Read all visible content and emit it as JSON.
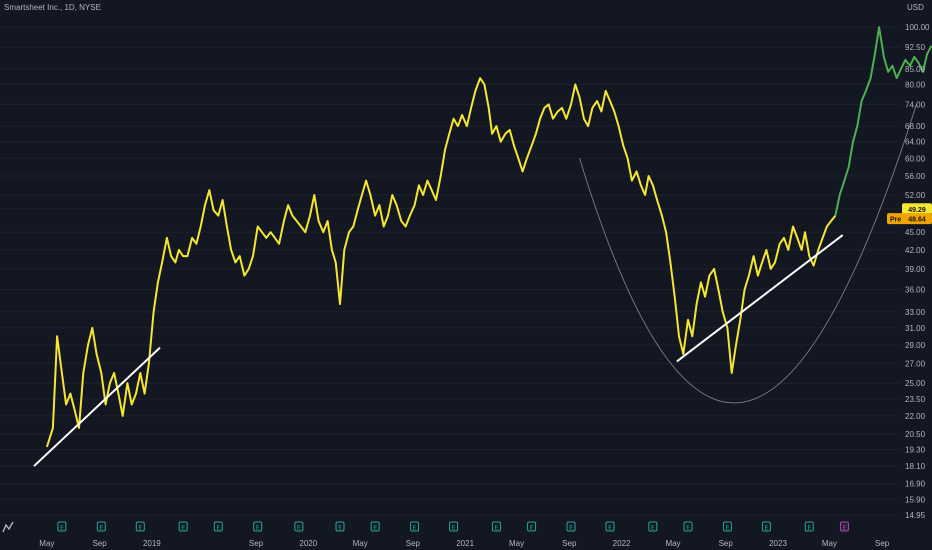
{
  "header": {
    "title": "Smartsheet Inc., 1D, NYSE"
  },
  "colors": {
    "background": "#131722",
    "price_line": "#f5e632",
    "recent_line": "#4caf50",
    "trendline": "#ffffff",
    "arc": "#9598a1",
    "last_price_badge": "#f5e632",
    "pre_badge": "#f0a500",
    "event_badge": "#26a69a",
    "event_badge_alt": "#ab47bc"
  },
  "chart_data": {
    "type": "line",
    "title": "Smartsheet Inc., 1D, NYSE",
    "ylabel": "USD",
    "y_scale": "log",
    "ylim": [
      14.5,
      102
    ],
    "y_ticks": [
      "100.00",
      "92.50",
      "85.00",
      "80.00",
      "74.00",
      "68.00",
      "64.00",
      "60.00",
      "56.00",
      "52.00",
      "49.29",
      "45.00",
      "42.00",
      "39.00",
      "36.00",
      "33.00",
      "31.00",
      "29.00",
      "27.00",
      "25.00",
      "23.50",
      "22.00",
      "20.50",
      "19.30",
      "18.10",
      "16.90",
      "15.90",
      "14.95"
    ],
    "x_ticks": [
      "May",
      "Sep",
      "2019",
      "Sep",
      "2020",
      "May",
      "Sep",
      "2021",
      "May",
      "Sep",
      "2022",
      "May",
      "Sep",
      "2023",
      "May",
      "Sep"
    ],
    "last_price": "49.29",
    "pre_label": "Pre",
    "pre_price": "48.64",
    "series": [
      {
        "values": [
          [
            "2018-05-01",
            19.5
          ],
          [
            "2018-05-15",
            21
          ],
          [
            "2018-05-25",
            30
          ],
          [
            "2018-06-05",
            26
          ],
          [
            "2018-06-15",
            23
          ],
          [
            "2018-06-25",
            24
          ],
          [
            "2018-07-05",
            22.5
          ],
          [
            "2018-07-15",
            21
          ],
          [
            "2018-07-25",
            26
          ],
          [
            "2018-08-05",
            29
          ],
          [
            "2018-08-15",
            31
          ],
          [
            "2018-08-25",
            28
          ],
          [
            "2018-09-05",
            26
          ],
          [
            "2018-09-15",
            23
          ],
          [
            "2018-09-25",
            25
          ],
          [
            "2018-10-05",
            26
          ],
          [
            "2018-10-15",
            24
          ],
          [
            "2018-10-25",
            22
          ],
          [
            "2018-11-05",
            25
          ],
          [
            "2018-11-15",
            23
          ],
          [
            "2018-11-25",
            24
          ],
          [
            "2018-12-05",
            26
          ],
          [
            "2018-12-15",
            24
          ],
          [
            "2018-12-25",
            27
          ],
          [
            "2019-01-05",
            33
          ],
          [
            "2019-01-15",
            37
          ],
          [
            "2019-01-25",
            40
          ],
          [
            "2019-02-05",
            44
          ],
          [
            "2019-02-15",
            41
          ],
          [
            "2019-02-25",
            40
          ],
          [
            "2019-03-05",
            42
          ],
          [
            "2019-03-15",
            41
          ],
          [
            "2019-03-25",
            41
          ],
          [
            "2019-04-05",
            44
          ],
          [
            "2019-04-15",
            43
          ],
          [
            "2019-04-25",
            46
          ],
          [
            "2019-05-05",
            50
          ],
          [
            "2019-05-15",
            53
          ],
          [
            "2019-05-25",
            49
          ],
          [
            "2019-06-05",
            48
          ],
          [
            "2019-06-15",
            51
          ],
          [
            "2019-06-25",
            46
          ],
          [
            "2019-07-05",
            42
          ],
          [
            "2019-07-15",
            40
          ],
          [
            "2019-07-25",
            41
          ],
          [
            "2019-08-05",
            38
          ],
          [
            "2019-08-15",
            39
          ],
          [
            "2019-08-25",
            41
          ],
          [
            "2019-09-05",
            46
          ],
          [
            "2019-09-15",
            45
          ],
          [
            "2019-09-25",
            44
          ],
          [
            "2019-10-05",
            45
          ],
          [
            "2019-10-15",
            44
          ],
          [
            "2019-10-25",
            43
          ],
          [
            "2019-11-05",
            47
          ],
          [
            "2019-11-15",
            50
          ],
          [
            "2019-11-25",
            48
          ],
          [
            "2019-12-05",
            47
          ],
          [
            "2019-12-15",
            46
          ],
          [
            "2019-12-25",
            45
          ],
          [
            "2020-01-05",
            48
          ],
          [
            "2020-01-15",
            52
          ],
          [
            "2020-01-25",
            47
          ],
          [
            "2020-02-05",
            45
          ],
          [
            "2020-02-15",
            47
          ],
          [
            "2020-02-25",
            42
          ],
          [
            "2020-03-05",
            40
          ],
          [
            "2020-03-15",
            34
          ],
          [
            "2020-03-25",
            42
          ],
          [
            "2020-04-05",
            45
          ],
          [
            "2020-04-15",
            46
          ],
          [
            "2020-04-25",
            49
          ],
          [
            "2020-05-05",
            52
          ],
          [
            "2020-05-15",
            55
          ],
          [
            "2020-05-25",
            52
          ],
          [
            "2020-06-05",
            48
          ],
          [
            "2020-06-15",
            50
          ],
          [
            "2020-06-25",
            46
          ],
          [
            "2020-07-05",
            48
          ],
          [
            "2020-07-15",
            52
          ],
          [
            "2020-07-25",
            50
          ],
          [
            "2020-08-05",
            47
          ],
          [
            "2020-08-15",
            46
          ],
          [
            "2020-08-25",
            48
          ],
          [
            "2020-09-05",
            50
          ],
          [
            "2020-09-15",
            54
          ],
          [
            "2020-09-25",
            52
          ],
          [
            "2020-10-05",
            55
          ],
          [
            "2020-10-15",
            53
          ],
          [
            "2020-10-25",
            51
          ],
          [
            "2020-11-05",
            56
          ],
          [
            "2020-11-15",
            62
          ],
          [
            "2020-11-25",
            66
          ],
          [
            "2020-12-05",
            70
          ],
          [
            "2020-12-15",
            68
          ],
          [
            "2020-12-25",
            71
          ],
          [
            "2021-01-05",
            68
          ],
          [
            "2021-01-15",
            73
          ],
          [
            "2021-01-25",
            78
          ],
          [
            "2021-02-05",
            82
          ],
          [
            "2021-02-15",
            80
          ],
          [
            "2021-02-25",
            73
          ],
          [
            "2021-03-05",
            66
          ],
          [
            "2021-03-15",
            68
          ],
          [
            "2021-03-25",
            64
          ],
          [
            "2021-04-05",
            66
          ],
          [
            "2021-04-15",
            67
          ],
          [
            "2021-04-25",
            63
          ],
          [
            "2021-05-05",
            60
          ],
          [
            "2021-05-15",
            57
          ],
          [
            "2021-05-25",
            60
          ],
          [
            "2021-06-05",
            63
          ],
          [
            "2021-06-15",
            66
          ],
          [
            "2021-06-25",
            70
          ],
          [
            "2021-07-05",
            73
          ],
          [
            "2021-07-15",
            74
          ],
          [
            "2021-07-25",
            70
          ],
          [
            "2021-08-05",
            72
          ],
          [
            "2021-08-15",
            73
          ],
          [
            "2021-08-25",
            70
          ],
          [
            "2021-09-05",
            74
          ],
          [
            "2021-09-15",
            80
          ],
          [
            "2021-09-25",
            76
          ],
          [
            "2021-10-05",
            70
          ],
          [
            "2021-10-15",
            68
          ],
          [
            "2021-10-25",
            73
          ],
          [
            "2021-11-05",
            75
          ],
          [
            "2021-11-15",
            72
          ],
          [
            "2021-11-25",
            78
          ],
          [
            "2021-12-05",
            75
          ],
          [
            "2021-12-15",
            72
          ],
          [
            "2021-12-25",
            68
          ],
          [
            "2022-01-05",
            63
          ],
          [
            "2022-01-15",
            60
          ],
          [
            "2022-01-25",
            55
          ],
          [
            "2022-02-05",
            57
          ],
          [
            "2022-02-15",
            54
          ],
          [
            "2022-02-25",
            52
          ],
          [
            "2022-03-05",
            56
          ],
          [
            "2022-03-15",
            54
          ],
          [
            "2022-03-25",
            51
          ],
          [
            "2022-04-05",
            48
          ],
          [
            "2022-04-15",
            45
          ],
          [
            "2022-04-25",
            40
          ],
          [
            "2022-05-05",
            35
          ],
          [
            "2022-05-15",
            30
          ],
          [
            "2022-05-25",
            28
          ],
          [
            "2022-06-05",
            32
          ],
          [
            "2022-06-15",
            30
          ],
          [
            "2022-06-25",
            34
          ],
          [
            "2022-07-05",
            37
          ],
          [
            "2022-07-15",
            35
          ],
          [
            "2022-07-25",
            38
          ],
          [
            "2022-08-05",
            39
          ],
          [
            "2022-08-15",
            36
          ],
          [
            "2022-08-25",
            33
          ],
          [
            "2022-09-05",
            31
          ],
          [
            "2022-09-15",
            26
          ],
          [
            "2022-09-25",
            29
          ],
          [
            "2022-10-05",
            32
          ],
          [
            "2022-10-15",
            36
          ],
          [
            "2022-10-25",
            38
          ],
          [
            "2022-11-05",
            41
          ],
          [
            "2022-11-15",
            38
          ],
          [
            "2022-11-25",
            40
          ],
          [
            "2022-12-05",
            42
          ],
          [
            "2022-12-15",
            39
          ],
          [
            "2022-12-25",
            40
          ],
          [
            "2023-01-05",
            43
          ],
          [
            "2023-01-15",
            44
          ],
          [
            "2023-01-25",
            42
          ],
          [
            "2023-02-05",
            46
          ],
          [
            "2023-02-15",
            44
          ],
          [
            "2023-02-25",
            42
          ],
          [
            "2023-03-05",
            45
          ],
          [
            "2023-03-15",
            41
          ],
          [
            "2023-03-25",
            39.5
          ],
          [
            "2023-04-05",
            42
          ],
          [
            "2023-04-15",
            44
          ],
          [
            "2023-04-25",
            46
          ],
          [
            "2023-05-05",
            47
          ],
          [
            "2023-05-15",
            48
          ]
        ]
      },
      {
        "values": [
          [
            "2023-05-15",
            48
          ],
          [
            "2023-05-25",
            52
          ],
          [
            "2023-06-05",
            55
          ],
          [
            "2023-06-15",
            58
          ],
          [
            "2023-06-25",
            64
          ],
          [
            "2023-07-05",
            68
          ],
          [
            "2023-07-15",
            75
          ],
          [
            "2023-07-25",
            78
          ],
          [
            "2023-08-05",
            82
          ],
          [
            "2023-08-15",
            90
          ],
          [
            "2023-08-25",
            100
          ],
          [
            "2023-09-05",
            89
          ],
          [
            "2023-09-15",
            84
          ],
          [
            "2023-09-25",
            86
          ],
          [
            "2023-10-05",
            82
          ],
          [
            "2023-10-15",
            85
          ],
          [
            "2023-10-25",
            88
          ],
          [
            "2023-11-05",
            86
          ],
          [
            "2023-11-15",
            89
          ],
          [
            "2023-11-25",
            87
          ],
          [
            "2023-12-05",
            84
          ],
          [
            "2023-12-15",
            90
          ],
          [
            "2023-12-25",
            93
          ]
        ]
      }
    ],
    "trendlines": [
      {
        "from": [
          "2018-04-01",
          18.1
        ],
        "to": [
          "2019-01-20",
          28.7
        ]
      },
      {
        "from": [
          "2022-05-10",
          27.2
        ],
        "to": [
          "2023-06-01",
          44.5
        ]
      }
    ],
    "arc": {
      "start": [
        "2021-09-25",
        60
      ],
      "bottom": [
        "2022-10-10",
        23.2
      ],
      "end": [
        "2023-11-20",
        74
      ]
    },
    "event_markers": {
      "earnings_label": "E",
      "other_label": "⌀",
      "dates": [
        "2018-06-05",
        "2018-09-05",
        "2018-12-05",
        "2019-03-15",
        "2019-06-05",
        "2019-09-05",
        "2019-12-10",
        "2020-03-15",
        "2020-06-05",
        "2020-09-05",
        "2020-12-05",
        "2021-03-15",
        "2021-06-05",
        "2021-09-05",
        "2021-12-05",
        "2022-03-15",
        "2022-06-05",
        "2022-09-05",
        "2022-12-05",
        "2023-03-15"
      ],
      "highlighted_date": "2023-06-05"
    }
  }
}
